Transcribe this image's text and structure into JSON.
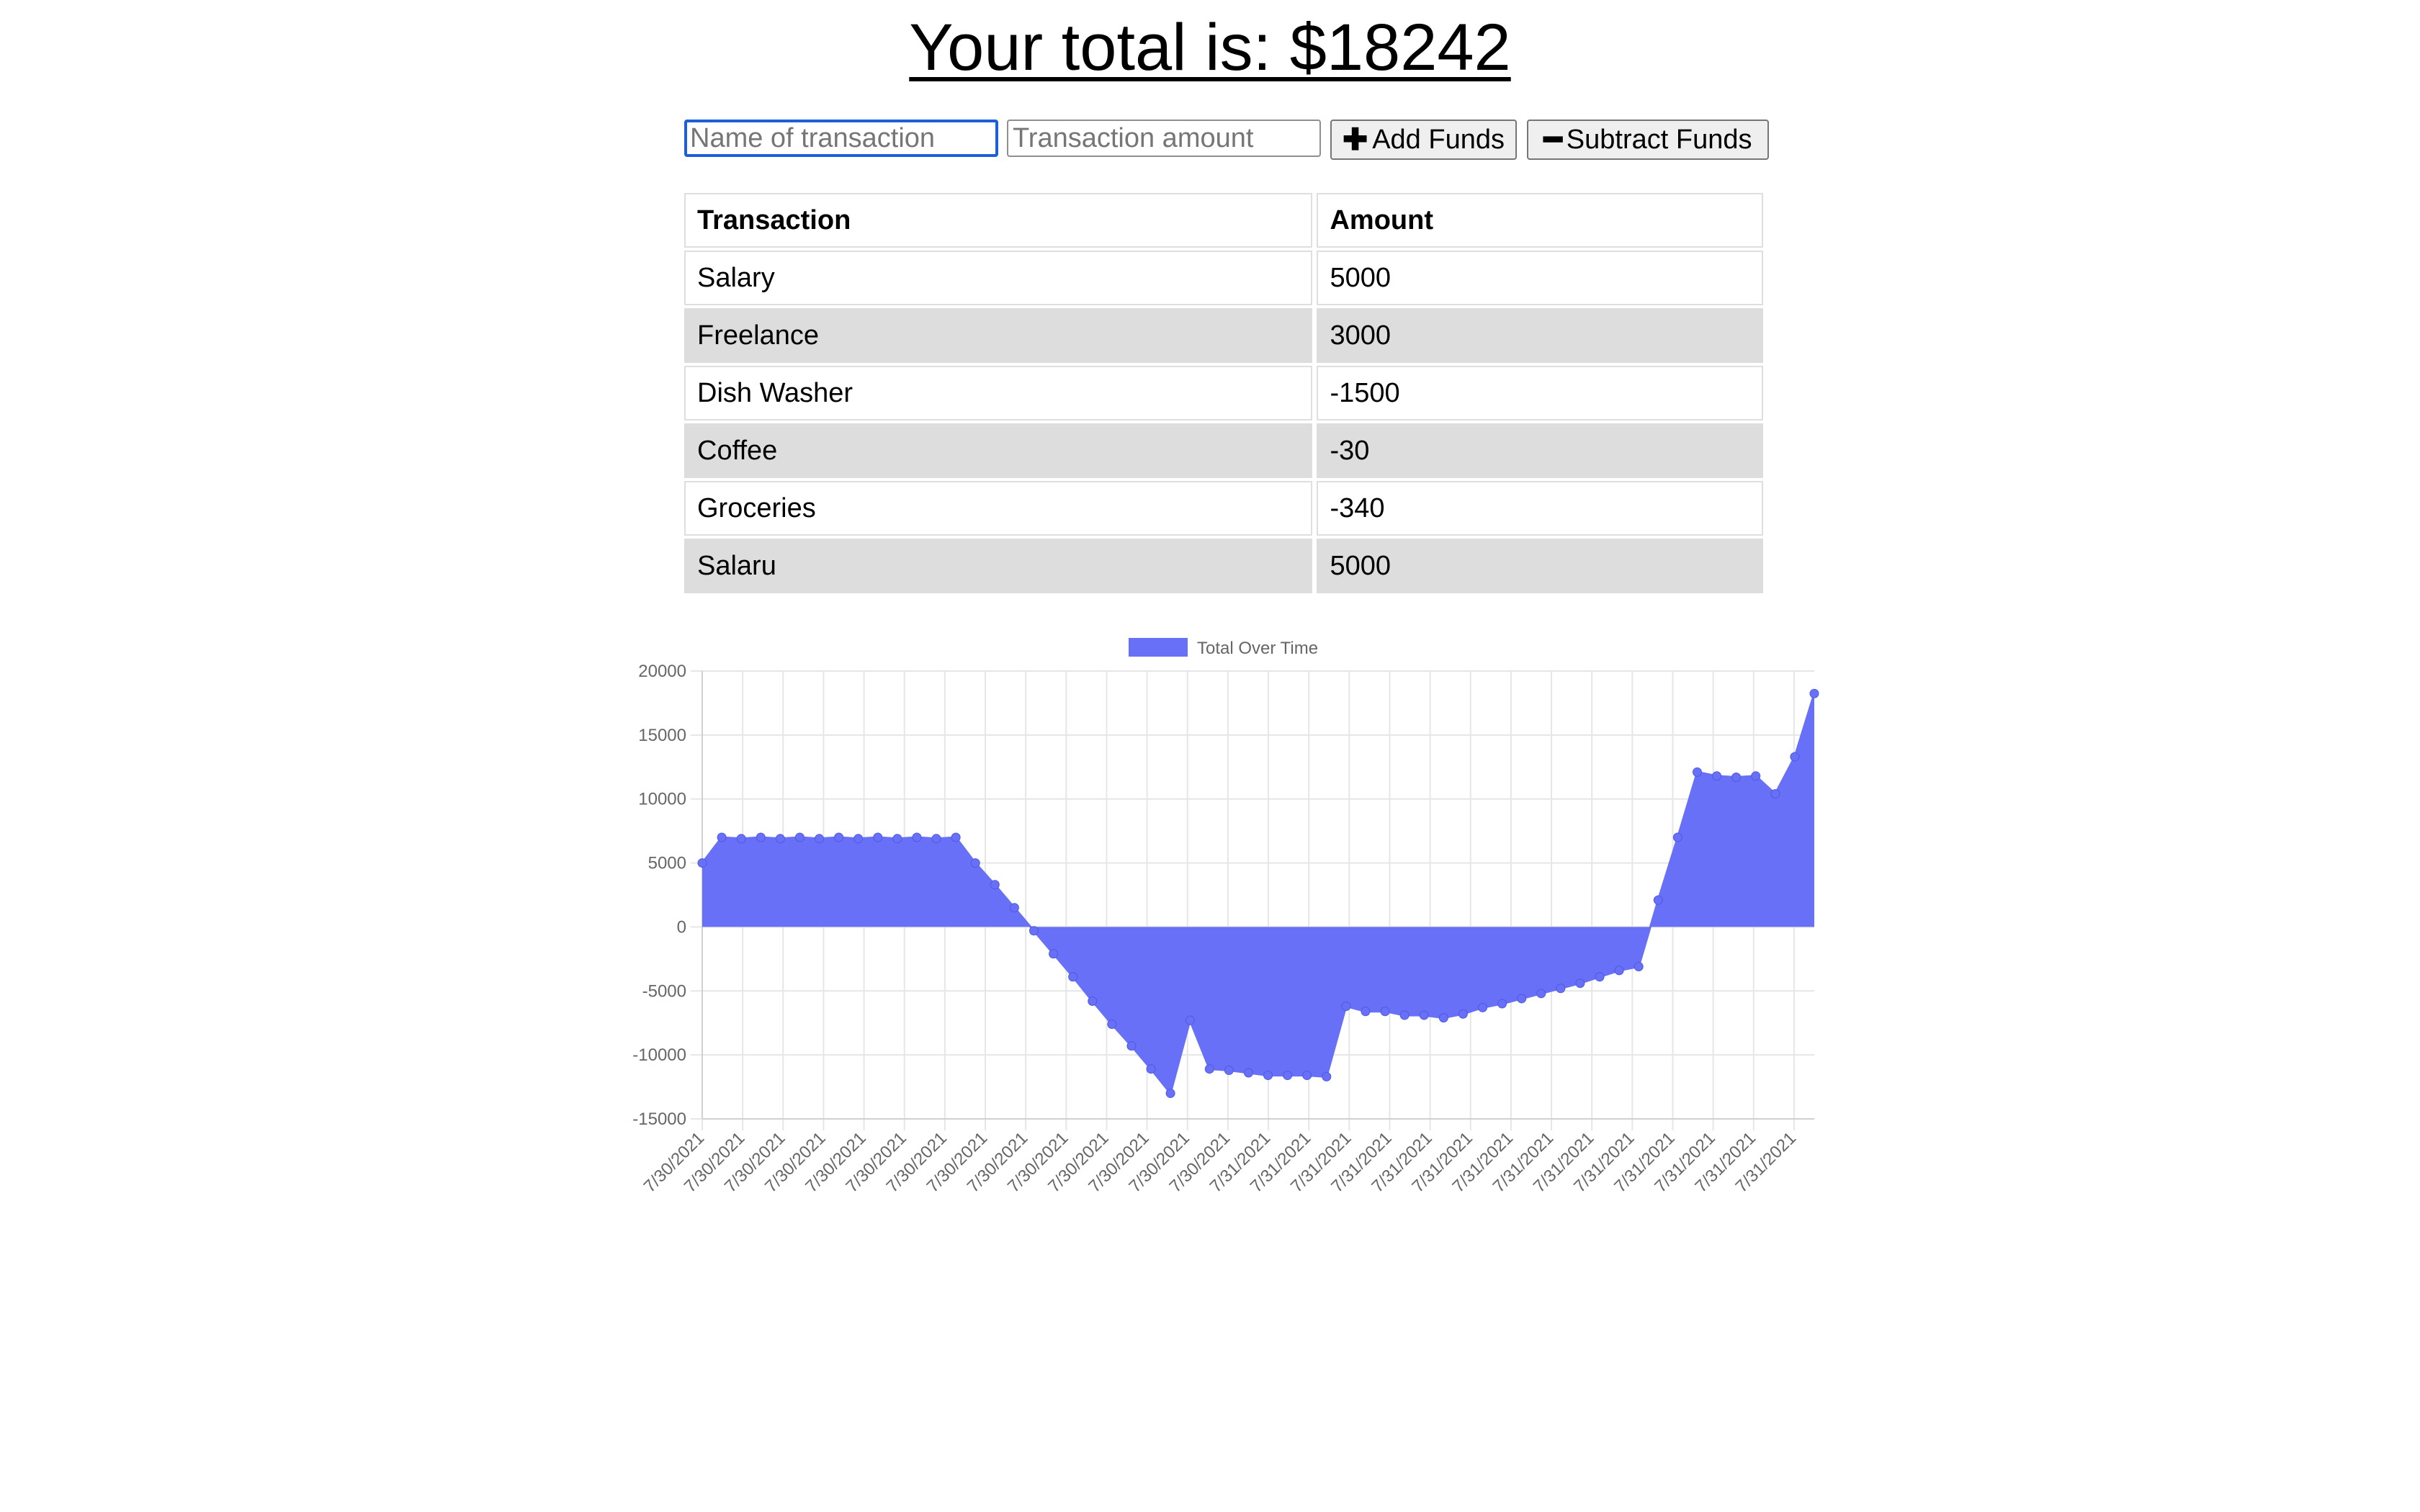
{
  "header": {
    "title": "Your total is: $18242"
  },
  "form": {
    "name_placeholder": "Name of transaction",
    "amount_placeholder": "Transaction amount",
    "add_label": "Add Funds",
    "subtract_label": "Subtract Funds",
    "add_icon": "plus-icon",
    "subtract_icon": "minus-icon"
  },
  "table": {
    "headers": [
      "Transaction",
      "Amount"
    ],
    "rows": [
      [
        "Salary",
        "5000"
      ],
      [
        "Freelance",
        "3000"
      ],
      [
        "Dish Washer",
        "-1500"
      ],
      [
        "Coffee",
        "-30"
      ],
      [
        "Groceries",
        "-340"
      ],
      [
        "Salaru",
        "5000"
      ]
    ]
  },
  "colors": {
    "series_fill": "#6870f8",
    "series_line": "#6870f8",
    "grid": "#e6e6e6",
    "axis_text": "#666666",
    "focus_border": "#1d5fd6",
    "row_stripe": "#dddddd"
  },
  "chart_data": {
    "type": "area",
    "legend": {
      "label": "Total Over Time",
      "position": "top"
    },
    "grid": true,
    "ylim": [
      -15000,
      20000
    ],
    "y_ticks": [
      20000,
      15000,
      10000,
      5000,
      0,
      -5000,
      -10000,
      -15000
    ],
    "x_tick_labels": [
      "7/30/2021",
      "7/30/2021",
      "7/30/2021",
      "7/30/2021",
      "7/30/2021",
      "7/30/2021",
      "7/30/2021",
      "7/30/2021",
      "7/30/2021",
      "7/30/2021",
      "7/30/2021",
      "7/30/2021",
      "7/30/2021",
      "7/30/2021",
      "7/31/2021",
      "7/31/2021",
      "7/31/2021",
      "7/31/2021",
      "7/31/2021",
      "7/31/2021",
      "7/31/2021",
      "7/31/2021",
      "7/31/2021",
      "7/31/2021",
      "7/31/2021",
      "7/31/2021",
      "7/31/2021",
      "7/31/2021"
    ],
    "series": [
      {
        "name": "Total Over Time",
        "values": [
          5000,
          7000,
          6900,
          7000,
          6900,
          7000,
          6900,
          7000,
          6900,
          7000,
          6900,
          7000,
          6900,
          7000,
          5000,
          3300,
          1500,
          -300,
          -2100,
          -3900,
          -5800,
          -7600,
          -9300,
          -11100,
          -13000,
          -7300,
          -11100,
          -11200,
          -11400,
          -11600,
          -11600,
          -11600,
          -11700,
          -6200,
          -6600,
          -6600,
          -6900,
          -6900,
          -7100,
          -6800,
          -6300,
          -6000,
          -5600,
          -5200,
          -4800,
          -4400,
          -3900,
          -3400,
          -3100,
          2100,
          7000,
          12100,
          11800,
          11700,
          11800,
          10400,
          13300,
          18242
        ]
      }
    ]
  }
}
